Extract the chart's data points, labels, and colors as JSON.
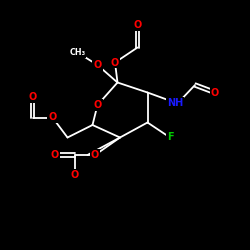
{
  "background_color": "#000000",
  "bond_color": "#ffffff",
  "atom_colors": {
    "O": "#ff0000",
    "N": "#1a1aff",
    "F": "#00cc00",
    "C": "#ffffff"
  },
  "figsize": [
    2.5,
    2.5
  ],
  "dpi": 100,
  "lw": 1.3,
  "fs": 7.0,
  "fs_small": 5.8
}
